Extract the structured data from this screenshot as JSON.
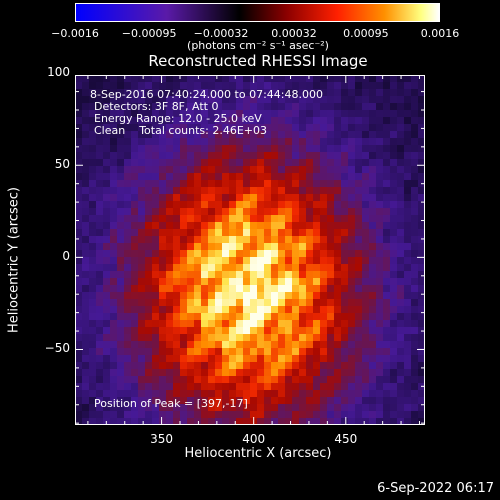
{
  "colorbar": {
    "ticks": [
      "−0.0016",
      "−0.00095",
      "−0.00032",
      "0.00032",
      "0.00095",
      "0.0016"
    ],
    "tick_values": [
      -0.0016,
      -0.00095,
      -0.00032,
      0.00032,
      0.00095,
      0.0016
    ],
    "units": "(photons cm⁻² s⁻¹ asec⁻²)",
    "colors": [
      "#0000ff",
      "#5a1aa8",
      "#000000",
      "#8b0000",
      "#ff2000",
      "#ff9000",
      "#ffff80",
      "#ffffff"
    ]
  },
  "chart_data": {
    "type": "heatmap",
    "title": "Reconstructed RHESSI Image",
    "xlabel": "Heliocentric X (arcsec)",
    "ylabel": "Heliocentric Y (arcsec)",
    "xlim": [
      303,
      493
    ],
    "ylim": [
      -91,
      99
    ],
    "x_ticks": [
      350,
      400,
      450
    ],
    "y_ticks": [
      -50,
      0,
      50,
      100
    ],
    "peak_position": [
      397,
      -17
    ]
  },
  "annotations": {
    "time_range": "8-Sep-2016 07:40:24.000 to 07:44:48.000",
    "detectors": "Detectors: 3F 8F, Att 0",
    "energy": "Energy Range: 12.0 - 25.0 keV",
    "clean": "Clean    Total counts: 2.46E+03",
    "peak": "Position of Peak = [397,-17]"
  },
  "footer": {
    "timestamp": "6-Sep-2022 06:17"
  }
}
